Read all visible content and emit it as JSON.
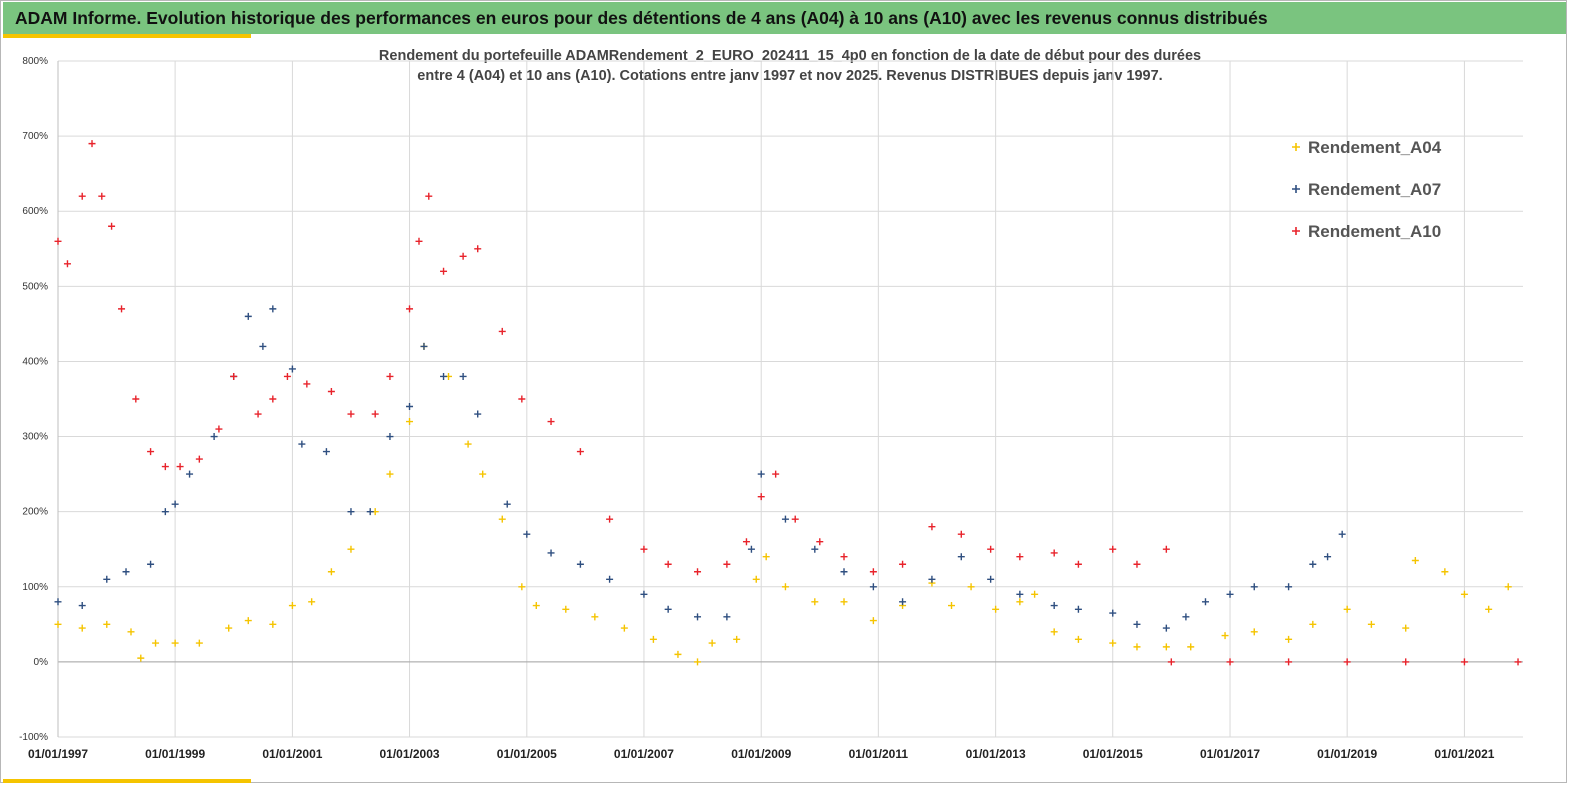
{
  "header": {
    "title": "ADAM Informe. Evolution historique des performances en euros pour des détentions de 4 ans (A04) à 10 ans (A10) avec les revenus connus distribués"
  },
  "colors": {
    "header_bg": "#7ac47f",
    "accent": "#f5c400",
    "A04": "#f5c400",
    "A07": "#2f4f80",
    "A10": "#e8232b"
  },
  "chart_data": {
    "type": "scatter",
    "title_line1": "Rendement du portefeuille ADAMRendement_2_EURO_202411_15_4p0  en fonction de la date de début pour des durées",
    "title_line2": "entre 4 (A04) et 10 ans (A10). Cotations  entre janv 1997 et nov 2025. Revenus DISTRIBUES depuis janv 1997.",
    "ylim": [
      -100,
      800
    ],
    "xlim": [
      "1997-01-01",
      "2022-01-01"
    ],
    "y_ticks": [
      "-100%",
      "0%",
      "100%",
      "200%",
      "300%",
      "400%",
      "500%",
      "600%",
      "700%",
      "800%"
    ],
    "x_ticks": [
      "01/01/1997",
      "01/01/1999",
      "01/01/2001",
      "01/01/2003",
      "01/01/2005",
      "01/01/2007",
      "01/01/2009",
      "01/01/2011",
      "01/01/2013",
      "01/01/2015",
      "01/01/2017",
      "01/01/2019",
      "01/01/2021"
    ],
    "grid": true,
    "legend_position": "top-right",
    "series": [
      {
        "name": "Rendement_A04",
        "color": "#f5c400",
        "points": [
          [
            "1997-01-01",
            50
          ],
          [
            "1997-06-01",
            45
          ],
          [
            "1997-11-01",
            50
          ],
          [
            "1998-04-01",
            40
          ],
          [
            "1998-06-01",
            5
          ],
          [
            "1998-09-01",
            25
          ],
          [
            "1999-01-01",
            25
          ],
          [
            "1999-06-01",
            25
          ],
          [
            "1999-12-01",
            45
          ],
          [
            "2000-04-01",
            55
          ],
          [
            "2000-09-01",
            50
          ],
          [
            "2001-01-01",
            75
          ],
          [
            "2001-05-01",
            80
          ],
          [
            "2001-09-01",
            120
          ],
          [
            "2002-01-01",
            150
          ],
          [
            "2002-06-01",
            200
          ],
          [
            "2002-09-01",
            250
          ],
          [
            "2003-01-01",
            320
          ],
          [
            "2003-04-01",
            420
          ],
          [
            "2003-09-01",
            380
          ],
          [
            "2004-01-01",
            290
          ],
          [
            "2004-04-01",
            250
          ],
          [
            "2004-08-01",
            190
          ],
          [
            "2004-12-01",
            100
          ],
          [
            "2005-03-01",
            75
          ],
          [
            "2005-09-01",
            70
          ],
          [
            "2006-03-01",
            60
          ],
          [
            "2006-09-01",
            45
          ],
          [
            "2007-03-01",
            30
          ],
          [
            "2007-08-01",
            10
          ],
          [
            "2007-12-01",
            0
          ],
          [
            "2008-03-01",
            25
          ],
          [
            "2008-08-01",
            30
          ],
          [
            "2008-12-01",
            110
          ],
          [
            "2009-02-01",
            140
          ],
          [
            "2009-06-01",
            100
          ],
          [
            "2009-12-01",
            80
          ],
          [
            "2010-06-01",
            80
          ],
          [
            "2010-12-01",
            55
          ],
          [
            "2011-06-01",
            75
          ],
          [
            "2011-12-01",
            105
          ],
          [
            "2012-04-01",
            75
          ],
          [
            "2012-08-01",
            100
          ],
          [
            "2013-01-01",
            70
          ],
          [
            "2013-06-01",
            80
          ],
          [
            "2013-09-01",
            90
          ],
          [
            "2014-01-01",
            40
          ],
          [
            "2014-06-01",
            30
          ],
          [
            "2015-01-01",
            25
          ],
          [
            "2015-06-01",
            20
          ],
          [
            "2015-12-01",
            20
          ],
          [
            "2016-05-01",
            20
          ],
          [
            "2016-12-01",
            35
          ],
          [
            "2017-06-01",
            40
          ],
          [
            "2018-01-01",
            30
          ],
          [
            "2018-06-01",
            50
          ],
          [
            "2019-01-01",
            70
          ],
          [
            "2019-06-01",
            50
          ],
          [
            "2020-01-01",
            45
          ],
          [
            "2020-03-01",
            135
          ],
          [
            "2020-09-01",
            120
          ],
          [
            "2021-01-01",
            90
          ],
          [
            "2021-06-01",
            70
          ],
          [
            "2021-10-01",
            100
          ]
        ]
      },
      {
        "name": "Rendement_A07",
        "color": "#2f4f80",
        "points": [
          [
            "1997-01-01",
            80
          ],
          [
            "1997-06-01",
            75
          ],
          [
            "1997-11-01",
            110
          ],
          [
            "1998-03-01",
            120
          ],
          [
            "1998-08-01",
            130
          ],
          [
            "1998-11-01",
            200
          ],
          [
            "1999-01-01",
            210
          ],
          [
            "1999-04-01",
            250
          ],
          [
            "1999-09-01",
            300
          ],
          [
            "2000-01-01",
            380
          ],
          [
            "2000-04-01",
            460
          ],
          [
            "2000-07-01",
            420
          ],
          [
            "2000-09-01",
            470
          ],
          [
            "2001-01-01",
            390
          ],
          [
            "2001-03-01",
            290
          ],
          [
            "2001-08-01",
            280
          ],
          [
            "2002-01-01",
            200
          ],
          [
            "2002-05-01",
            200
          ],
          [
            "2002-09-01",
            300
          ],
          [
            "2003-01-01",
            340
          ],
          [
            "2003-04-01",
            420
          ],
          [
            "2003-08-01",
            380
          ],
          [
            "2003-12-01",
            380
          ],
          [
            "2004-03-01",
            330
          ],
          [
            "2004-09-01",
            210
          ],
          [
            "2005-01-01",
            170
          ],
          [
            "2005-06-01",
            145
          ],
          [
            "2005-12-01",
            130
          ],
          [
            "2006-06-01",
            110
          ],
          [
            "2007-01-01",
            90
          ],
          [
            "2007-06-01",
            70
          ],
          [
            "2007-12-01",
            60
          ],
          [
            "2008-06-01",
            60
          ],
          [
            "2008-11-01",
            150
          ],
          [
            "2009-01-01",
            250
          ],
          [
            "2009-06-01",
            190
          ],
          [
            "2009-12-01",
            150
          ],
          [
            "2010-06-01",
            120
          ],
          [
            "2010-12-01",
            100
          ],
          [
            "2011-06-01",
            80
          ],
          [
            "2011-12-01",
            110
          ],
          [
            "2012-06-01",
            140
          ],
          [
            "2012-12-01",
            110
          ],
          [
            "2013-06-01",
            90
          ],
          [
            "2014-01-01",
            75
          ],
          [
            "2014-06-01",
            70
          ],
          [
            "2015-01-01",
            65
          ],
          [
            "2015-06-01",
            50
          ],
          [
            "2015-12-01",
            45
          ],
          [
            "2016-04-01",
            60
          ],
          [
            "2016-08-01",
            80
          ],
          [
            "2017-01-01",
            90
          ],
          [
            "2017-06-01",
            100
          ],
          [
            "2018-01-01",
            100
          ],
          [
            "2018-06-01",
            130
          ],
          [
            "2018-09-01",
            140
          ],
          [
            "2018-12-01",
            170
          ]
        ]
      },
      {
        "name": "Rendement_A10",
        "color": "#e8232b",
        "points": [
          [
            "1997-01-01",
            560
          ],
          [
            "1997-03-01",
            530
          ],
          [
            "1997-06-01",
            620
          ],
          [
            "1997-08-01",
            690
          ],
          [
            "1997-10-01",
            620
          ],
          [
            "1997-12-01",
            580
          ],
          [
            "1998-02-01",
            470
          ],
          [
            "1998-05-01",
            350
          ],
          [
            "1998-08-01",
            280
          ],
          [
            "1998-11-01",
            260
          ],
          [
            "1999-02-01",
            260
          ],
          [
            "1999-06-01",
            270
          ],
          [
            "1999-10-01",
            310
          ],
          [
            "2000-01-01",
            380
          ],
          [
            "2000-06-01",
            330
          ],
          [
            "2000-09-01",
            350
          ],
          [
            "2000-12-01",
            380
          ],
          [
            "2001-04-01",
            370
          ],
          [
            "2001-09-01",
            360
          ],
          [
            "2002-01-01",
            330
          ],
          [
            "2002-06-01",
            330
          ],
          [
            "2002-09-01",
            380
          ],
          [
            "2003-01-01",
            470
          ],
          [
            "2003-03-01",
            560
          ],
          [
            "2003-05-01",
            620
          ],
          [
            "2003-08-01",
            520
          ],
          [
            "2003-12-01",
            540
          ],
          [
            "2004-03-01",
            550
          ],
          [
            "2004-08-01",
            440
          ],
          [
            "2004-12-01",
            350
          ],
          [
            "2005-06-01",
            320
          ],
          [
            "2005-12-01",
            280
          ],
          [
            "2006-06-01",
            190
          ],
          [
            "2007-01-01",
            150
          ],
          [
            "2007-06-01",
            130
          ],
          [
            "2007-12-01",
            120
          ],
          [
            "2008-06-01",
            130
          ],
          [
            "2008-10-01",
            160
          ],
          [
            "2009-01-01",
            220
          ],
          [
            "2009-04-01",
            250
          ],
          [
            "2009-08-01",
            190
          ],
          [
            "2010-01-01",
            160
          ],
          [
            "2010-06-01",
            140
          ],
          [
            "2010-12-01",
            120
          ],
          [
            "2011-06-01",
            130
          ],
          [
            "2011-12-01",
            180
          ],
          [
            "2012-06-01",
            170
          ],
          [
            "2012-12-01",
            150
          ],
          [
            "2013-06-01",
            140
          ],
          [
            "2014-01-01",
            145
          ],
          [
            "2014-06-01",
            130
          ],
          [
            "2015-01-01",
            150
          ],
          [
            "2015-06-01",
            130
          ],
          [
            "2015-12-01",
            150
          ],
          [
            "2016-01-01",
            0
          ],
          [
            "2017-01-01",
            0
          ],
          [
            "2018-01-01",
            0
          ],
          [
            "2019-01-01",
            0
          ],
          [
            "2020-01-01",
            0
          ],
          [
            "2021-01-01",
            0
          ],
          [
            "2021-12-01",
            0
          ]
        ]
      }
    ]
  }
}
